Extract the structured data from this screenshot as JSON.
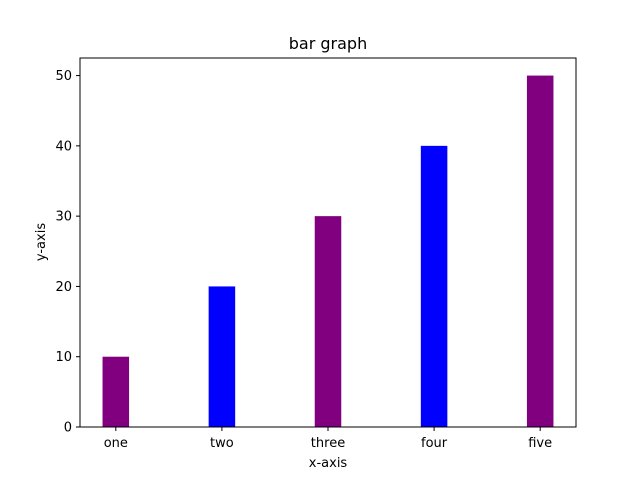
{
  "chart_data": {
    "type": "bar",
    "title": "bar graph",
    "xlabel": "x-axis",
    "ylabel": "y-axis",
    "categories": [
      "one",
      "two",
      "three",
      "four",
      "five"
    ],
    "values": [
      10,
      20,
      30,
      40,
      50
    ],
    "bar_colors": [
      "#800080",
      "#0000ff",
      "#800080",
      "#0000ff",
      "#800080"
    ],
    "ylim": [
      0,
      52.5
    ],
    "yticks": [
      0,
      10,
      20,
      30,
      40,
      50
    ],
    "grid": false,
    "legend": "none"
  }
}
